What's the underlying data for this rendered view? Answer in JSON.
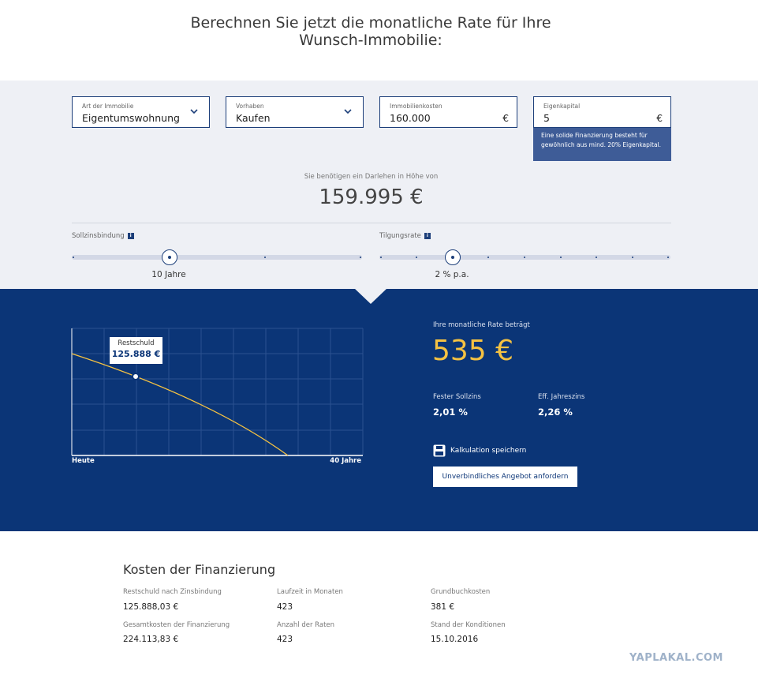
{
  "header": {
    "title_lines": [
      "Berechnen Sie jetzt die monatliche Rate für Ihre",
      "Wunsch-Immobilie:"
    ]
  },
  "form": {
    "fields": [
      {
        "label": "Art der Immobilie",
        "value": "Eigentumswohnung"
      },
      {
        "label": "Vorhaben",
        "value": "Kaufen"
      },
      {
        "label": "Immobilienkosten",
        "value": "160.000",
        "unit": "€"
      },
      {
        "label": "Eigenkapital",
        "value": "5",
        "unit": "€",
        "hint": "Eine solide Finanzierung besteht für gewöhnlich aus mind. 20% Eigenkapital."
      }
    ],
    "loan_label": "Sie benötigen ein Darlehen in Höhe von",
    "loan_amount": "159.995 €",
    "sliders": [
      {
        "label": "Sollzinsbindung",
        "value": "10 Jahre"
      },
      {
        "label": "Tilgungsrate",
        "value": "2 % p.a."
      }
    ]
  },
  "result": {
    "chart": {
      "tooltip_label": "Restschuld",
      "tooltip_value": "125.888 €",
      "x_start": "Heute",
      "x_end": "40 Jahre"
    },
    "rate_label": "Ihre monatliche Rate beträgt",
    "rate": "535 €",
    "rates": [
      {
        "label": "Fester Sollzins",
        "value": "2,01 %"
      },
      {
        "label": "Eff. Jahreszins",
        "value": "2,26 %"
      }
    ],
    "save": "Kalkulation speichern",
    "button": "Unverbindliches Angebot anfordern"
  },
  "costs": {
    "title": "Kosten der Finanzierung",
    "items": [
      {
        "label": "Restschuld nach Zinsbindung",
        "value": "125.888,03 €"
      },
      {
        "label": "Laufzeit in Monaten",
        "value": "423"
      },
      {
        "label": "Grundbuchkosten",
        "value": "381 €"
      },
      {
        "label": "Gesamtkosten der Finanzierung",
        "value": "224.113,83 €"
      },
      {
        "label": "Anzahl der Raten",
        "value": "423"
      },
      {
        "label": "Stand der Konditionen",
        "value": "15.10.2016"
      }
    ]
  },
  "watermark": "YAPLAKAL.COM"
}
